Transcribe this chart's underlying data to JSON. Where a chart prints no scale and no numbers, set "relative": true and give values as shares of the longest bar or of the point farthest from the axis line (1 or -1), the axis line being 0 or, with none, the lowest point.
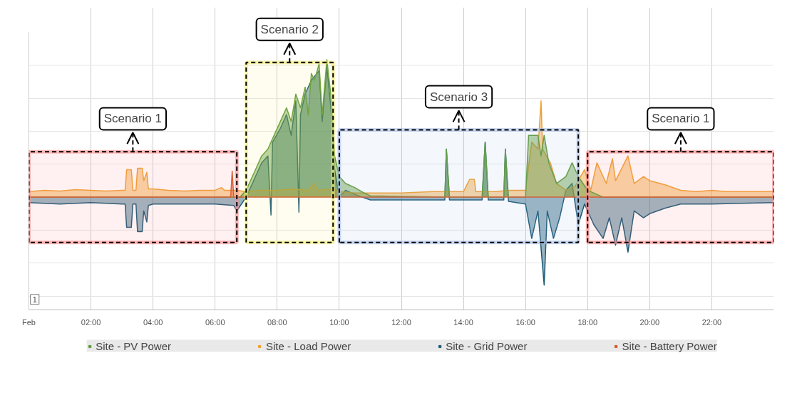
{
  "chart_data": {
    "type": "area",
    "relative": true,
    "grid": true,
    "legend": "bottom",
    "xlim": [
      0,
      24
    ],
    "xticks": [
      {
        "value": 0,
        "label": "Feb"
      },
      {
        "value": 2,
        "label": "02:00"
      },
      {
        "value": 4,
        "label": "04:00"
      },
      {
        "value": 6,
        "label": "06:00"
      },
      {
        "value": 8,
        "label": "08:00"
      },
      {
        "value": 10,
        "label": "10:00"
      },
      {
        "value": 12,
        "label": "12:00"
      },
      {
        "value": 14,
        "label": "14:00"
      },
      {
        "value": 16,
        "label": "16:00"
      },
      {
        "value": 18,
        "label": "18:00"
      },
      {
        "value": 20,
        "label": "20:00"
      },
      {
        "value": 22,
        "label": "22:00"
      }
    ],
    "series": [
      {
        "name": "Site - PV Power",
        "color": "#5e9a38",
        "x": [
          0,
          6.8,
          7.0,
          7.3,
          7.5,
          7.7,
          7.9,
          8.1,
          8.3,
          8.45,
          8.6,
          8.75,
          8.9,
          9.0,
          9.1,
          9.2,
          9.35,
          9.45,
          9.6,
          9.75,
          9.85,
          10.0,
          10.2,
          10.5,
          10.8,
          11.0,
          13.4,
          13.45,
          13.55,
          14.6,
          14.7,
          14.8,
          15.3,
          15.35,
          15.45,
          16.0,
          16.1,
          16.4,
          16.5,
          16.6,
          16.75,
          17.0,
          17.3,
          17.5,
          17.7,
          18.0,
          18.5,
          24
        ],
        "values": [
          0,
          0,
          0.05,
          0.2,
          0.3,
          0.35,
          0.45,
          0.55,
          0.65,
          0.55,
          0.75,
          0.65,
          0.8,
          0.6,
          0.9,
          0.85,
          0.97,
          0.6,
          1.0,
          0.7,
          0.3,
          0.15,
          0.1,
          0.07,
          0.03,
          0.01,
          0,
          0.35,
          0,
          0,
          0.4,
          0,
          0,
          0.35,
          0,
          0,
          0.45,
          0.45,
          0.3,
          0.45,
          0.25,
          0.1,
          0.15,
          0.25,
          0.15,
          0.05,
          0,
          0
        ]
      },
      {
        "name": "Site - Load Power",
        "color": "#f0a032",
        "x": [
          0,
          0.5,
          1.0,
          1.5,
          2.0,
          2.5,
          3.0,
          3.1,
          3.15,
          3.3,
          3.35,
          3.45,
          3.5,
          3.65,
          3.7,
          3.8,
          3.85,
          4.0,
          4.5,
          5.0,
          5.5,
          6.0,
          6.2,
          6.3,
          6.7,
          7.0,
          7.5,
          8.0,
          8.5,
          9.0,
          9.2,
          9.3,
          9.8,
          10.0,
          10.5,
          11.0,
          12.0,
          13.0,
          13.5,
          14.0,
          14.2,
          14.35,
          14.4,
          15.0,
          15.5,
          16.0,
          16.2,
          16.4,
          16.5,
          16.55,
          16.8,
          17.0,
          17.3,
          17.6,
          17.9,
          18.1,
          18.3,
          18.6,
          18.8,
          18.9,
          19.3,
          19.5,
          19.8,
          20.0,
          20.5,
          21.0,
          21.5,
          22.0,
          22.5,
          23.0,
          24
        ],
        "values": [
          0.04,
          0.05,
          0.045,
          0.055,
          0.05,
          0.045,
          0.05,
          0.05,
          0.2,
          0.2,
          0.05,
          0.05,
          0.21,
          0.21,
          0.12,
          0.18,
          0.06,
          0.06,
          0.05,
          0.045,
          0.05,
          0.05,
          0.07,
          0.05,
          0.05,
          0.04,
          0.05,
          0.05,
          0.06,
          0.05,
          0.1,
          0.05,
          0.06,
          0.04,
          0.03,
          0.03,
          0.03,
          0.04,
          0.04,
          0.04,
          0.13,
          0.13,
          0.04,
          0.04,
          0.05,
          0.05,
          0.4,
          0.35,
          0.7,
          0.35,
          0.25,
          0.1,
          0.05,
          0.08,
          0.2,
          0.05,
          0.25,
          0.1,
          0.28,
          0.12,
          0.3,
          0.1,
          0.15,
          0.12,
          0.09,
          0.05,
          0.04,
          0.05,
          0.04,
          0.04,
          0.04
        ]
      },
      {
        "name": "Site - Grid Power",
        "color": "#1b5876",
        "x": [
          0,
          1.0,
          2.0,
          3.0,
          3.1,
          3.15,
          3.3,
          3.35,
          3.45,
          3.5,
          3.65,
          3.7,
          3.8,
          3.85,
          4.0,
          5.0,
          6.0,
          6.6,
          6.7,
          7.0,
          7.5,
          7.7,
          7.8,
          7.85,
          8.1,
          8.3,
          8.45,
          8.6,
          8.7,
          8.75,
          8.9,
          9.1,
          9.35,
          9.45,
          9.6,
          9.75,
          9.85,
          10.0,
          10.2,
          10.5,
          11.0,
          13.4,
          13.45,
          13.55,
          14.6,
          14.7,
          14.8,
          15.3,
          15.35,
          15.45,
          16.0,
          16.2,
          16.4,
          16.6,
          16.7,
          16.9,
          17.1,
          17.3,
          17.5,
          17.7,
          17.9,
          18.2,
          18.5,
          18.7,
          18.9,
          19.1,
          19.3,
          19.5,
          19.8,
          20.0,
          20.5,
          21.0,
          22.0,
          24
        ],
        "values": [
          -0.04,
          -0.05,
          -0.04,
          -0.05,
          -0.05,
          -0.22,
          -0.22,
          -0.05,
          -0.05,
          -0.25,
          -0.25,
          -0.1,
          -0.18,
          -0.06,
          -0.05,
          -0.05,
          -0.05,
          -0.06,
          -0.1,
          0.0,
          0.25,
          0.3,
          -0.13,
          0.4,
          0.5,
          0.6,
          0.45,
          0.7,
          -0.11,
          0.6,
          0.75,
          0.85,
          0.92,
          0.55,
          0.95,
          0.6,
          0.2,
          0.0,
          0.05,
          0.02,
          -0.02,
          -0.02,
          0.35,
          -0.02,
          -0.02,
          0.4,
          -0.02,
          -0.02,
          0.35,
          -0.03,
          -0.05,
          -0.3,
          -0.1,
          -0.64,
          -0.1,
          -0.3,
          -0.15,
          0.05,
          0.1,
          -0.2,
          -0.05,
          -0.2,
          -0.3,
          -0.15,
          -0.35,
          -0.15,
          -0.4,
          -0.1,
          -0.15,
          -0.12,
          -0.08,
          -0.05,
          -0.05,
          -0.04
        ]
      },
      {
        "name": "Site - Battery Power",
        "color": "#d9572b",
        "x": [
          0,
          6.5,
          6.55,
          6.6,
          24
        ],
        "values": [
          0,
          0,
          0.19,
          0,
          0
        ]
      }
    ],
    "bands": [
      {
        "axis": "x",
        "from": 0,
        "to": 6.7,
        "label": "Scenario 1",
        "color": "#ff8a8a"
      },
      {
        "axis": "x",
        "from": 7.0,
        "to": 9.8,
        "label": "Scenario 2",
        "color": "#f5f07a"
      },
      {
        "axis": "x",
        "from": 10.0,
        "to": 17.7,
        "label": "Scenario 3",
        "color": "#a8c0e8"
      },
      {
        "axis": "x",
        "from": 18.0,
        "to": 24,
        "label": "Scenario 1",
        "color": "#ff8a8a"
      }
    ],
    "annotations": [
      "1"
    ]
  }
}
